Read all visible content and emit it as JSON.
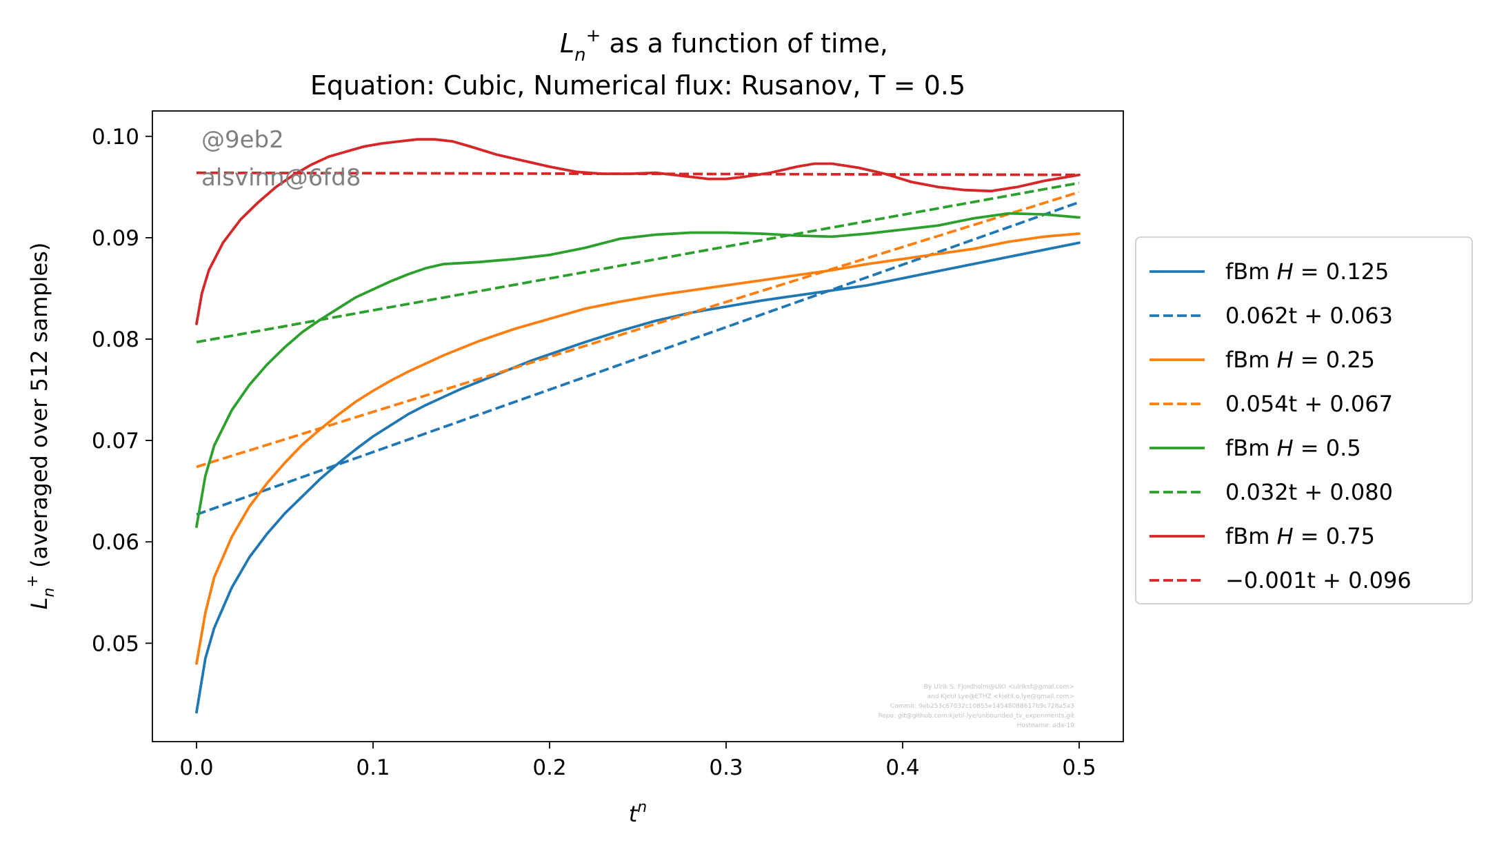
{
  "chart_data": {
    "type": "line",
    "title": "L_n^+  as a function of time,",
    "title_parts": {
      "symbol_base": "L",
      "symbol_sub": "n",
      "symbol_sup": "+",
      "rest": " as a function of time,"
    },
    "subtitle": "Equation: Cubic, Numerical flux: Rusanov, T = 0.5",
    "xlabel": "t^n",
    "xlabel_parts": {
      "base": "t",
      "sup": "n"
    },
    "ylabel": "L_n^+ (averaged over 512 samples)",
    "ylabel_parts": {
      "base": "L",
      "sub": "n",
      "sup": "+",
      "rest": " (averaged over 512 samples)"
    },
    "xlim": [
      -0.025,
      0.525
    ],
    "ylim": [
      0.0403,
      0.1025
    ],
    "xticks": [
      "0.0",
      "0.1",
      "0.2",
      "0.3",
      "0.4",
      "0.5"
    ],
    "xtick_values": [
      0.0,
      0.1,
      0.2,
      0.3,
      0.4,
      0.5
    ],
    "yticks": [
      "0.05",
      "0.06",
      "0.07",
      "0.08",
      "0.09",
      "0.10"
    ],
    "ytick_values": [
      0.05,
      0.06,
      0.07,
      0.08,
      0.09,
      0.1
    ],
    "grid": false,
    "legend_position": "outside-right",
    "series": [
      {
        "name": "fBm H = 0.125",
        "legend_prefix": "fBm ",
        "legend_var": "H",
        "legend_rest": " = 0.125",
        "color": "#1f77b4",
        "style": "solid",
        "x": [
          0,
          0.005,
          0.01,
          0.02,
          0.03,
          0.04,
          0.05,
          0.06,
          0.07,
          0.08,
          0.09,
          0.1,
          0.11,
          0.12,
          0.13,
          0.14,
          0.15,
          0.16,
          0.17,
          0.18,
          0.19,
          0.2,
          0.22,
          0.24,
          0.26,
          0.28,
          0.3,
          0.32,
          0.34,
          0.36,
          0.38,
          0.4,
          0.42,
          0.44,
          0.46,
          0.48,
          0.5
        ],
        "y": [
          0.0432,
          0.0485,
          0.0515,
          0.0555,
          0.0585,
          0.0608,
          0.0628,
          0.0645,
          0.0662,
          0.0677,
          0.0691,
          0.0704,
          0.0715,
          0.0726,
          0.0735,
          0.0743,
          0.0751,
          0.0758,
          0.0765,
          0.0772,
          0.0779,
          0.0785,
          0.0797,
          0.0808,
          0.0818,
          0.0826,
          0.0832,
          0.0838,
          0.0843,
          0.0848,
          0.0853,
          0.086,
          0.0867,
          0.0874,
          0.0881,
          0.0888,
          0.0895
        ]
      },
      {
        "name": "0.062t + 0.063",
        "legend_prefix": "",
        "legend_var": "",
        "legend_rest": "0.062t + 0.063",
        "color": "#1f77b4",
        "style": "dashed",
        "x": [
          0,
          0.5
        ],
        "y": [
          0.0627,
          0.0935
        ]
      },
      {
        "name": "fBm H = 0.25",
        "legend_prefix": "fBm ",
        "legend_var": "H",
        "legend_rest": " = 0.25",
        "color": "#ff7f0e",
        "style": "solid",
        "x": [
          0,
          0.005,
          0.01,
          0.02,
          0.03,
          0.04,
          0.05,
          0.06,
          0.07,
          0.08,
          0.09,
          0.1,
          0.11,
          0.12,
          0.13,
          0.14,
          0.15,
          0.16,
          0.17,
          0.18,
          0.19,
          0.2,
          0.22,
          0.24,
          0.26,
          0.28,
          0.3,
          0.32,
          0.34,
          0.36,
          0.38,
          0.4,
          0.42,
          0.44,
          0.46,
          0.48,
          0.5
        ],
        "y": [
          0.048,
          0.053,
          0.0565,
          0.0605,
          0.0635,
          0.0658,
          0.0678,
          0.0696,
          0.0711,
          0.0725,
          0.0738,
          0.0749,
          0.0759,
          0.0768,
          0.0776,
          0.0784,
          0.0791,
          0.0798,
          0.0804,
          0.081,
          0.0815,
          0.082,
          0.083,
          0.0837,
          0.0843,
          0.0848,
          0.0853,
          0.0858,
          0.0863,
          0.0868,
          0.0874,
          0.0879,
          0.0884,
          0.0889,
          0.0896,
          0.0901,
          0.0904
        ]
      },
      {
        "name": "0.054t + 0.067",
        "legend_prefix": "",
        "legend_var": "",
        "legend_rest": "0.054t + 0.067",
        "color": "#ff7f0e",
        "style": "dashed",
        "x": [
          0,
          0.5
        ],
        "y": [
          0.0674,
          0.0945
        ]
      },
      {
        "name": "fBm H = 0.5",
        "legend_prefix": "fBm ",
        "legend_var": "H",
        "legend_rest": " = 0.5",
        "color": "#2ca02c",
        "style": "solid",
        "x": [
          0,
          0.005,
          0.01,
          0.02,
          0.03,
          0.04,
          0.05,
          0.06,
          0.07,
          0.08,
          0.09,
          0.1,
          0.11,
          0.12,
          0.13,
          0.14,
          0.15,
          0.16,
          0.18,
          0.2,
          0.22,
          0.24,
          0.26,
          0.28,
          0.3,
          0.32,
          0.34,
          0.36,
          0.38,
          0.4,
          0.42,
          0.44,
          0.46,
          0.48,
          0.5
        ],
        "y": [
          0.0615,
          0.0665,
          0.0695,
          0.073,
          0.0755,
          0.0775,
          0.0792,
          0.0807,
          0.0819,
          0.083,
          0.0841,
          0.0849,
          0.0857,
          0.0864,
          0.087,
          0.0874,
          0.0875,
          0.0876,
          0.0879,
          0.0883,
          0.089,
          0.0899,
          0.0903,
          0.0905,
          0.0905,
          0.0904,
          0.0902,
          0.0901,
          0.0904,
          0.0908,
          0.0912,
          0.0919,
          0.0924,
          0.0923,
          0.092
        ]
      },
      {
        "name": "0.032t + 0.080",
        "legend_prefix": "",
        "legend_var": "",
        "legend_rest": "0.032t + 0.080",
        "color": "#2ca02c",
        "style": "dashed",
        "x": [
          0,
          0.5
        ],
        "y": [
          0.0797,
          0.0954
        ]
      },
      {
        "name": "fBm H = 0.75",
        "legend_prefix": "fBm ",
        "legend_var": "H",
        "legend_rest": " = 0.75",
        "color": "#d62728",
        "style": "solid",
        "x": [
          0,
          0.003,
          0.007,
          0.015,
          0.025,
          0.035,
          0.045,
          0.055,
          0.065,
          0.075,
          0.085,
          0.095,
          0.105,
          0.115,
          0.125,
          0.135,
          0.145,
          0.155,
          0.17,
          0.185,
          0.2,
          0.215,
          0.23,
          0.245,
          0.26,
          0.275,
          0.29,
          0.3,
          0.31,
          0.325,
          0.34,
          0.35,
          0.36,
          0.375,
          0.39,
          0.405,
          0.42,
          0.435,
          0.45,
          0.465,
          0.48,
          0.49,
          0.5
        ],
        "y": [
          0.0815,
          0.0845,
          0.0868,
          0.0895,
          0.0918,
          0.0935,
          0.095,
          0.0962,
          0.0972,
          0.098,
          0.0985,
          0.099,
          0.0993,
          0.0995,
          0.0997,
          0.0997,
          0.0995,
          0.099,
          0.0982,
          0.0976,
          0.097,
          0.0965,
          0.0963,
          0.0963,
          0.0964,
          0.0961,
          0.0958,
          0.0958,
          0.096,
          0.0964,
          0.097,
          0.0973,
          0.0973,
          0.0969,
          0.0963,
          0.0955,
          0.095,
          0.0947,
          0.0946,
          0.095,
          0.0956,
          0.0959,
          0.0962
        ]
      },
      {
        "name": "−0.001t + 0.096",
        "legend_prefix": "",
        "legend_var": "",
        "legend_rest": "−0.001t + 0.096",
        "color": "#d62728",
        "style": "dashed",
        "x": [
          0,
          0.5
        ],
        "y": [
          0.0964,
          0.0962
        ]
      }
    ],
    "annotations": {
      "watermark_line1": "@9eb2",
      "watermark_line2": "alsvinn@6fd8",
      "credits": [
        "By Ulrik S. Fjordholm@UiO <ulriksf@gmal.com>",
        "and Kjetil Lye@ETHZ <kjetil.o.lye@gmail.com>",
        "Commit: 9eb253c67032c10855e14548088617b9c728a5a3",
        "Repo: git@github.com:kjetil-lye/unbounded_tv_experiments.git",
        "Hostname: ada-19"
      ]
    }
  }
}
